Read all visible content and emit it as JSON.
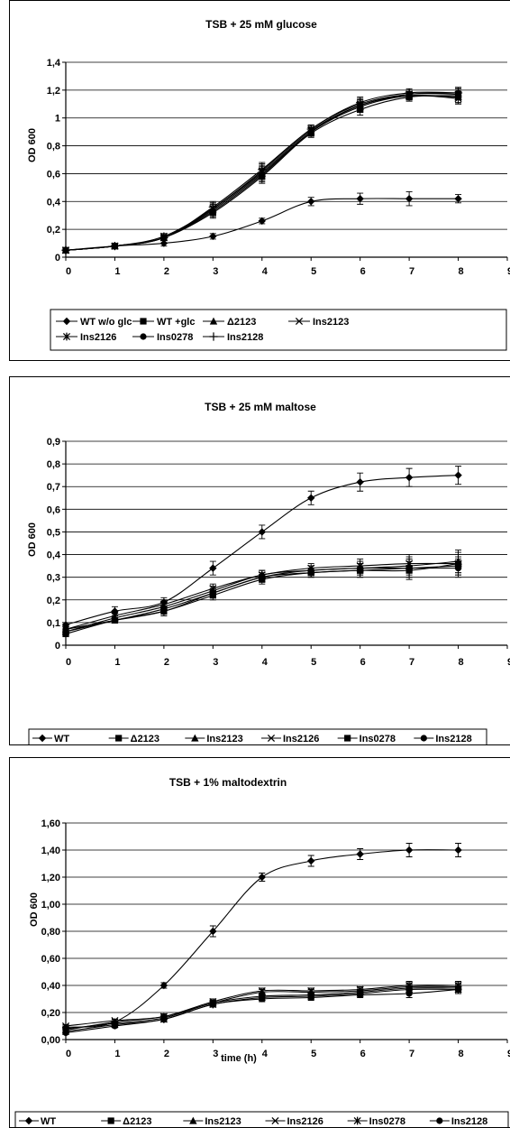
{
  "chart_data": [
    {
      "type": "line",
      "title": "TSB + 25 mM glucose",
      "xlabel": "",
      "ylabel": "OD 600",
      "xlim": [
        0,
        9
      ],
      "ylim": [
        0,
        1.4
      ],
      "yticks": [
        "0",
        "0,2",
        "0,4",
        "0,6",
        "0,8",
        "1",
        "1,2",
        "1,4"
      ],
      "xticks": [
        "0",
        "1",
        "2",
        "3",
        "4",
        "5",
        "6",
        "7",
        "8",
        "9"
      ],
      "grid": true,
      "legend_position": "bottom",
      "x": [
        0,
        1,
        2,
        3,
        4,
        5,
        6,
        7,
        8
      ],
      "series": [
        {
          "name": "WT w/o glc",
          "marker": "diamond",
          "values": [
            0.05,
            0.08,
            0.1,
            0.15,
            0.26,
            0.4,
            0.42,
            0.42,
            0.42
          ],
          "errors": [
            0.01,
            0.01,
            0.02,
            0.02,
            0.02,
            0.03,
            0.04,
            0.05,
            0.03
          ]
        },
        {
          "name": "WT +glc",
          "marker": "square",
          "values": [
            0.05,
            0.08,
            0.14,
            0.32,
            0.58,
            0.89,
            1.06,
            1.15,
            1.16
          ],
          "errors": [
            0.01,
            0.01,
            0.02,
            0.04,
            0.05,
            0.03,
            0.04,
            0.03,
            0.05
          ]
        },
        {
          "name": "Δ2123",
          "marker": "triangle",
          "values": [
            0.05,
            0.08,
            0.14,
            0.34,
            0.6,
            0.9,
            1.08,
            1.16,
            1.15
          ],
          "errors": [
            0.01,
            0.01,
            0.02,
            0.04,
            0.05,
            0.03,
            0.04,
            0.03,
            0.04
          ]
        },
        {
          "name": "Ins2123",
          "marker": "x",
          "values": [
            0.05,
            0.08,
            0.14,
            0.35,
            0.61,
            0.91,
            1.09,
            1.16,
            1.14
          ],
          "errors": [
            0.01,
            0.01,
            0.02,
            0.04,
            0.05,
            0.03,
            0.04,
            0.03,
            0.04
          ]
        },
        {
          "name": "Ins2126",
          "marker": "star",
          "values": [
            0.05,
            0.08,
            0.15,
            0.35,
            0.62,
            0.92,
            1.1,
            1.17,
            1.17
          ],
          "errors": [
            0.01,
            0.01,
            0.02,
            0.04,
            0.05,
            0.03,
            0.04,
            0.03,
            0.04
          ]
        },
        {
          "name": "Ins0278",
          "marker": "circle",
          "values": [
            0.05,
            0.08,
            0.14,
            0.33,
            0.59,
            0.9,
            1.09,
            1.17,
            1.18
          ],
          "errors": [
            0.01,
            0.01,
            0.02,
            0.04,
            0.05,
            0.03,
            0.04,
            0.03,
            0.04
          ]
        },
        {
          "name": "Ins2128",
          "marker": "plus",
          "values": [
            0.05,
            0.08,
            0.14,
            0.36,
            0.63,
            0.92,
            1.11,
            1.18,
            1.18
          ],
          "errors": [
            0.01,
            0.01,
            0.02,
            0.04,
            0.05,
            0.03,
            0.04,
            0.03,
            0.04
          ]
        }
      ]
    },
    {
      "type": "line",
      "title": "TSB + 25 mM maltose",
      "xlabel": "",
      "ylabel": "OD 600",
      "xlim": [
        0,
        9
      ],
      "ylim": [
        0,
        0.9
      ],
      "yticks": [
        "0",
        "0,1",
        "0,2",
        "0,3",
        "0,4",
        "0,5",
        "0,6",
        "0,7",
        "0,8",
        "0,9"
      ],
      "xticks": [
        "0",
        "1",
        "2",
        "3",
        "4",
        "5",
        "6",
        "7",
        "8",
        "9"
      ],
      "grid": true,
      "legend_position": "bottom",
      "x": [
        0,
        1,
        2,
        3,
        4,
        5,
        6,
        7,
        8
      ],
      "series": [
        {
          "name": "WT",
          "marker": "diamond",
          "values": [
            0.09,
            0.15,
            0.19,
            0.34,
            0.5,
            0.65,
            0.72,
            0.74,
            0.75
          ],
          "errors": [
            0.01,
            0.02,
            0.02,
            0.03,
            0.03,
            0.03,
            0.04,
            0.04,
            0.04
          ]
        },
        {
          "name": "Δ2123",
          "marker": "square",
          "values": [
            0.05,
            0.11,
            0.15,
            0.22,
            0.29,
            0.32,
            0.33,
            0.34,
            0.35
          ],
          "errors": [
            0.01,
            0.01,
            0.02,
            0.02,
            0.02,
            0.02,
            0.03,
            0.04,
            0.04
          ]
        },
        {
          "name": "Ins2123",
          "marker": "triangle",
          "values": [
            0.06,
            0.12,
            0.17,
            0.24,
            0.31,
            0.33,
            0.34,
            0.35,
            0.37
          ],
          "errors": [
            0.01,
            0.01,
            0.02,
            0.02,
            0.02,
            0.02,
            0.03,
            0.04,
            0.05
          ]
        },
        {
          "name": "Ins2126",
          "marker": "x",
          "values": [
            0.07,
            0.13,
            0.18,
            0.25,
            0.31,
            0.34,
            0.35,
            0.36,
            0.36
          ],
          "errors": [
            0.01,
            0.01,
            0.02,
            0.02,
            0.02,
            0.02,
            0.03,
            0.04,
            0.04
          ]
        },
        {
          "name": "Ins0278",
          "marker": "square",
          "values": [
            0.06,
            0.11,
            0.16,
            0.23,
            0.3,
            0.32,
            0.33,
            0.33,
            0.36
          ],
          "errors": [
            0.01,
            0.01,
            0.02,
            0.02,
            0.02,
            0.02,
            0.03,
            0.04,
            0.05
          ]
        },
        {
          "name": "Ins2128",
          "marker": "circle",
          "values": [
            0.07,
            0.11,
            0.15,
            0.23,
            0.3,
            0.33,
            0.34,
            0.34,
            0.34
          ],
          "errors": [
            0.01,
            0.01,
            0.02,
            0.02,
            0.02,
            0.02,
            0.03,
            0.04,
            0.04
          ]
        }
      ]
    },
    {
      "type": "line",
      "title": "TSB + 1% maltodextrin",
      "xlabel": "time (h)",
      "ylabel": "OD 600",
      "xlim": [
        0,
        9
      ],
      "ylim": [
        0,
        1.6
      ],
      "yticks": [
        "0,00",
        "0,20",
        "0,40",
        "0,60",
        "0,80",
        "1,00",
        "1,20",
        "1,40",
        "1,60"
      ],
      "xticks": [
        "0",
        "1",
        "2",
        "3",
        "4",
        "5",
        "6",
        "7",
        "8",
        "9"
      ],
      "grid": true,
      "legend_position": "bottom",
      "x": [
        0,
        1,
        2,
        3,
        4,
        5,
        6,
        7,
        8
      ],
      "series": [
        {
          "name": "WT",
          "marker": "diamond",
          "values": [
            0.09,
            0.13,
            0.4,
            0.8,
            1.2,
            1.32,
            1.37,
            1.4,
            1.4
          ],
          "errors": [
            0.01,
            0.02,
            0.02,
            0.04,
            0.03,
            0.04,
            0.04,
            0.05,
            0.05
          ]
        },
        {
          "name": "Δ2123",
          "marker": "square",
          "values": [
            0.08,
            0.12,
            0.16,
            0.27,
            0.32,
            0.33,
            0.35,
            0.38,
            0.38
          ],
          "errors": [
            0.01,
            0.01,
            0.02,
            0.02,
            0.02,
            0.02,
            0.02,
            0.03,
            0.03
          ]
        },
        {
          "name": "Ins2123",
          "marker": "triangle",
          "values": [
            0.07,
            0.13,
            0.17,
            0.27,
            0.35,
            0.35,
            0.36,
            0.39,
            0.39
          ],
          "errors": [
            0.01,
            0.01,
            0.02,
            0.02,
            0.02,
            0.02,
            0.02,
            0.03,
            0.03
          ]
        },
        {
          "name": "Ins2126",
          "marker": "x",
          "values": [
            0.1,
            0.14,
            0.17,
            0.28,
            0.36,
            0.36,
            0.37,
            0.4,
            0.4
          ],
          "errors": [
            0.01,
            0.01,
            0.02,
            0.02,
            0.02,
            0.02,
            0.02,
            0.03,
            0.03
          ]
        },
        {
          "name": "Ins0278",
          "marker": "star",
          "values": [
            0.06,
            0.11,
            0.15,
            0.26,
            0.31,
            0.32,
            0.34,
            0.37,
            0.37
          ],
          "errors": [
            0.01,
            0.01,
            0.02,
            0.02,
            0.02,
            0.02,
            0.02,
            0.03,
            0.03
          ]
        },
        {
          "name": "Ins2128",
          "marker": "circle",
          "values": [
            0.05,
            0.1,
            0.15,
            0.26,
            0.3,
            0.31,
            0.33,
            0.34,
            0.37
          ],
          "errors": [
            0.01,
            0.01,
            0.02,
            0.02,
            0.02,
            0.02,
            0.02,
            0.03,
            0.03
          ]
        }
      ]
    }
  ]
}
